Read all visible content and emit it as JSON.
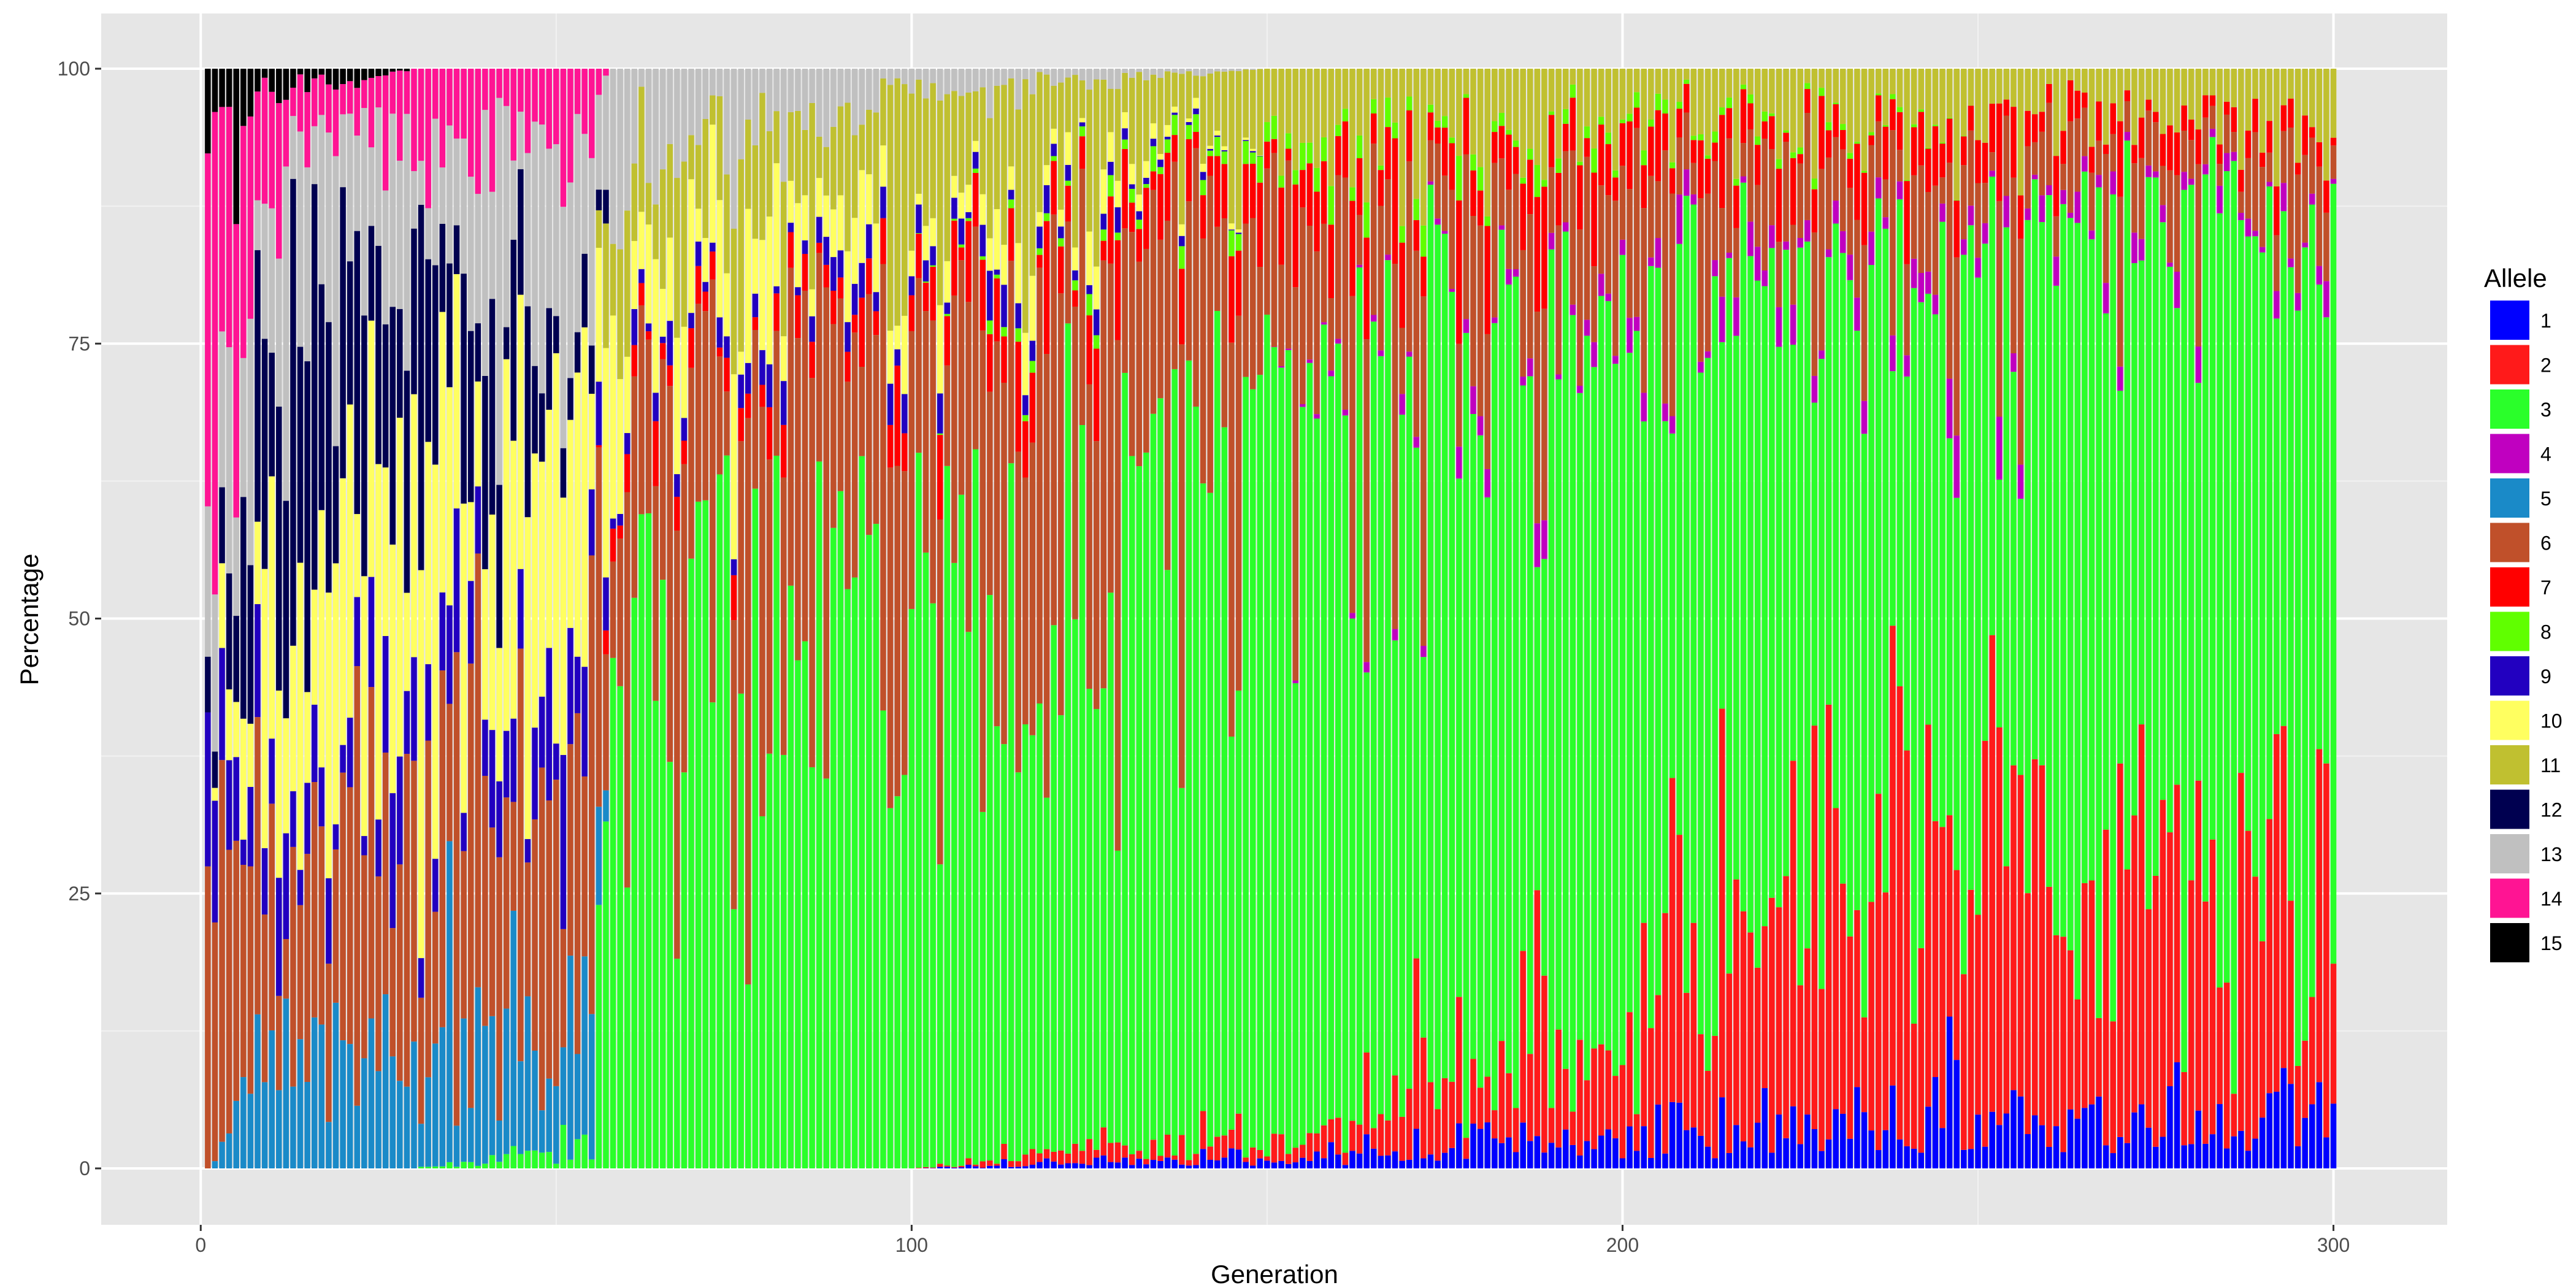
{
  "chart_data": {
    "type": "bar",
    "stacked": "percent",
    "xlabel": "Generation",
    "ylabel": "Percentage",
    "xlim": [
      -14,
      316
    ],
    "ylim": [
      0,
      100
    ],
    "x_ticks": [
      0,
      100,
      200,
      300
    ],
    "y_ticks": [
      0,
      25,
      50,
      75,
      100
    ],
    "grid": true,
    "legend": {
      "title": "Allele",
      "placement": "right"
    },
    "generations": [
      1,
      300
    ],
    "series": [
      {
        "name": "1",
        "color": "#0000ff"
      },
      {
        "name": "2",
        "color": "#ff1a1a"
      },
      {
        "name": "3",
        "color": "#2aff2a"
      },
      {
        "name": "4",
        "color": "#c000c0"
      },
      {
        "name": "5",
        "color": "#1a8ac8"
      },
      {
        "name": "6",
        "color": "#c0502a"
      },
      {
        "name": "7",
        "color": "#ff0000"
      },
      {
        "name": "8",
        "color": "#60ff00"
      },
      {
        "name": "9",
        "color": "#2200c0"
      },
      {
        "name": "10",
        "color": "#ffff60"
      },
      {
        "name": "11",
        "color": "#c0c030"
      },
      {
        "name": "12",
        "color": "#000050"
      },
      {
        "name": "13",
        "color": "#c0c0c0"
      },
      {
        "name": "14",
        "color": "#ff1493"
      },
      {
        "name": "15",
        "color": "#000000"
      }
    ],
    "anchors": [
      {
        "generation": 1,
        "shares": {
          "5": 0,
          "6": 30,
          "9": 10,
          "12": 5,
          "13": 15,
          "14": 30,
          "15": 10
        }
      },
      {
        "generation": 10,
        "shares": {
          "5": 10,
          "6": 15,
          "9": 5,
          "10": 20,
          "12": 25,
          "13": 17,
          "14": 6,
          "15": 2
        }
      },
      {
        "generation": 30,
        "shares": {
          "5": 10,
          "6": 25,
          "9": 8,
          "10": 25,
          "12": 15,
          "13": 10,
          "14": 7
        }
      },
      {
        "generation": 55,
        "shares": {
          "3": 2,
          "5": 10,
          "6": 25,
          "9": 6,
          "10": 20,
          "12": 10,
          "13": 22,
          "14": 5
        }
      },
      {
        "generation": 58,
        "shares": {
          "3": 45,
          "6": 22,
          "7": 2,
          "9": 2,
          "10": 10,
          "11": 10,
          "13": 9
        }
      },
      {
        "generation": 100,
        "shares": {
          "3": 50,
          "6": 28,
          "7": 4,
          "9": 2,
          "10": 4,
          "11": 10,
          "13": 2
        }
      },
      {
        "generation": 150,
        "shares": {
          "1": 1,
          "2": 2,
          "3": 65,
          "6": 18,
          "7": 5,
          "8": 2,
          "11": 7
        }
      },
      {
        "generation": 200,
        "shares": {
          "1": 3,
          "2": 10,
          "3": 65,
          "4": 2,
          "6": 10,
          "7": 4,
          "8": 1,
          "11": 5
        }
      },
      {
        "generation": 250,
        "shares": {
          "1": 5,
          "2": 30,
          "3": 48,
          "4": 2,
          "6": 7,
          "7": 3,
          "11": 5
        }
      },
      {
        "generation": 300,
        "shares": {
          "1": 4,
          "2": 14,
          "3": 70,
          "4": 1,
          "6": 5,
          "7": 2,
          "11": 4
        }
      }
    ]
  }
}
